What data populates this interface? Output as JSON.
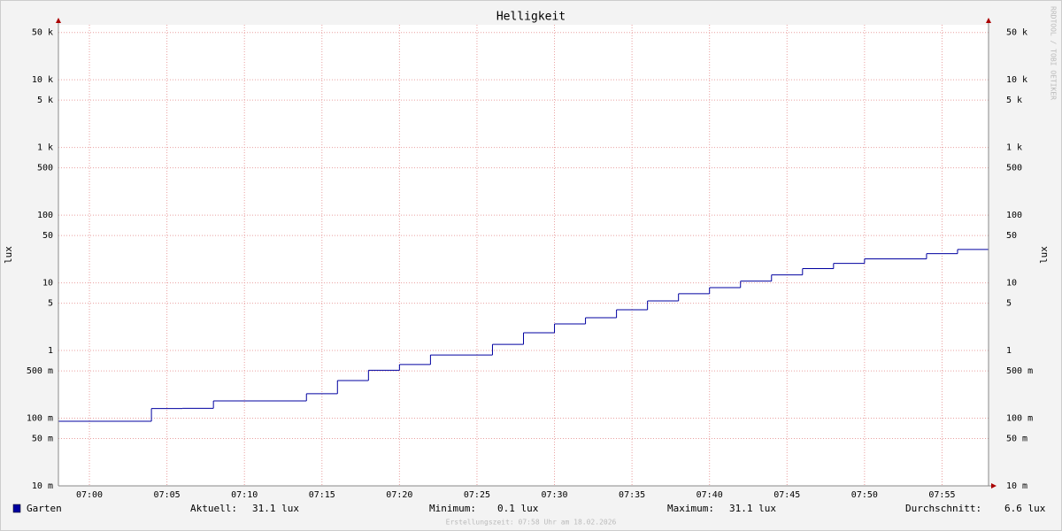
{
  "chart_data": {
    "type": "line",
    "step": true,
    "log_y": true,
    "grid": true,
    "title": "Helligkeit",
    "y_label": "lux",
    "watermark": "RRDTOOL / TOBI OETIKER",
    "footer": "Erstellungszeit: 07:58 Uhr am 18.02.2026",
    "xlim": [
      "06:58",
      "07:58"
    ],
    "xticks": [
      "07:00",
      "07:05",
      "07:10",
      "07:15",
      "07:20",
      "07:25",
      "07:30",
      "07:35",
      "07:40",
      "07:45",
      "07:50",
      "07:55"
    ],
    "ylim": [
      0.01,
      65000
    ],
    "yticks": [
      {
        "value": 50000,
        "label": "50 k"
      },
      {
        "value": 10000,
        "label": "10 k"
      },
      {
        "value": 5000,
        "label": "5 k"
      },
      {
        "value": 1000,
        "label": "1 k"
      },
      500,
      100,
      50,
      10,
      5,
      1,
      {
        "value": 0.5,
        "label": "500 m"
      },
      {
        "value": 0.1,
        "label": "100 m"
      },
      {
        "value": 0.05,
        "label": "50 m"
      },
      {
        "value": 0.01,
        "label": "10 m"
      }
    ],
    "x": [
      "06:58",
      "07:04",
      "07:06",
      "07:08",
      "07:14",
      "07:16",
      "07:18",
      "07:20",
      "07:22",
      "07:26",
      "07:28",
      "07:30",
      "07:32",
      "07:34",
      "07:36",
      "07:38",
      "07:40",
      "07:42",
      "07:44",
      "07:46",
      "07:48",
      "07:50",
      "07:54",
      "07:56"
    ],
    "series": [
      {
        "name": "Garten",
        "color": "#0000a0",
        "values": [
          0.09,
          0.139,
          0.14,
          0.18,
          0.23,
          0.36,
          0.51,
          0.62,
          0.86,
          1.23,
          1.83,
          2.47,
          3.05,
          4.0,
          5.4,
          6.9,
          8.5,
          10.6,
          13.1,
          16.2,
          19.4,
          22.6,
          27.0,
          31.1
        ]
      }
    ],
    "legend_stats": [
      {
        "label": "Aktuell:",
        "value": "31.1 lux"
      },
      {
        "label": "Minimum:",
        "value": "0.1 lux"
      },
      {
        "label": "Maximum:",
        "value": "31.1 lux"
      },
      {
        "label": "Durchschnitt:",
        "value": "6.6 lux"
      }
    ]
  }
}
